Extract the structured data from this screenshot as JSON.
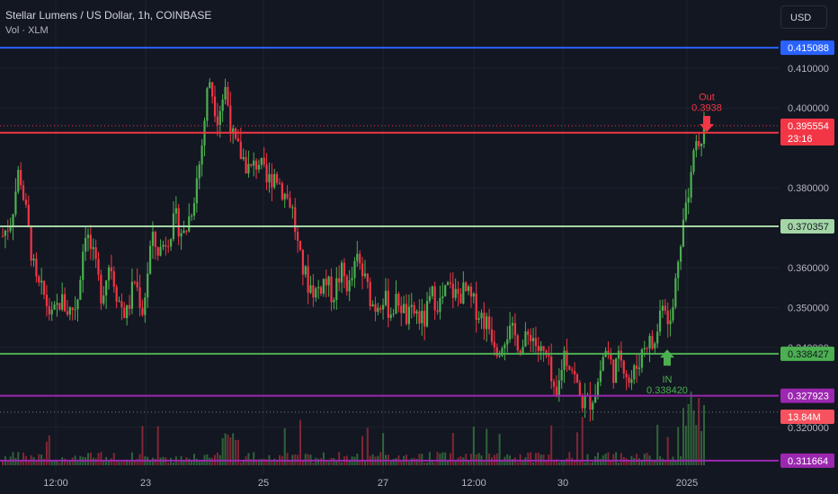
{
  "header": {
    "symbol_title": "Stellar Lumens / US Dollar, 1h, COINBASE",
    "volume_indicator": "Vol · XLM",
    "currency_button": "USD"
  },
  "colors": {
    "background": "#131722",
    "up": "#4caf50",
    "down": "#f23645",
    "hline_blue": "#2962ff",
    "hline_red": "#f23645",
    "hline_light_green": "#a5d6a7",
    "hline_green": "#4caf50",
    "hline_purple": "#9c27b0",
    "volume_badge": "#f7525f"
  },
  "chart_data": {
    "type": "candlestick",
    "title": "Stellar Lumens / US Dollar, 1h, COINBASE",
    "ylim": [
      0.3105,
      0.4167
    ],
    "y_ticks": [
      0.41,
      0.4,
      0.38,
      0.36,
      0.35,
      0.34,
      0.32
    ],
    "y_tick_labels": [
      "0.410000",
      "0.400000",
      "0.380000",
      "0.360000",
      "0.350000",
      "0.340000",
      "0.320000"
    ],
    "x_tick_labels": [
      "12:00",
      "23",
      "25",
      "27",
      "12:00",
      "30",
      "2025"
    ],
    "grid": true,
    "close_path": [
      0.368,
      0.372,
      0.385,
      0.371,
      0.356,
      0.353,
      0.347,
      0.352,
      0.349,
      0.351,
      0.37,
      0.362,
      0.353,
      0.362,
      0.352,
      0.348,
      0.357,
      0.349,
      0.367,
      0.364,
      0.368,
      0.372,
      0.368,
      0.376,
      0.388,
      0.408,
      0.398,
      0.405,
      0.391,
      0.388,
      0.384,
      0.387,
      0.381,
      0.384,
      0.379,
      0.376,
      0.362,
      0.356,
      0.354,
      0.357,
      0.353,
      0.359,
      0.355,
      0.362,
      0.356,
      0.35,
      0.353,
      0.349,
      0.352,
      0.347,
      0.349,
      0.346,
      0.353,
      0.351,
      0.355,
      0.353,
      0.354,
      0.351,
      0.348,
      0.345,
      0.34,
      0.344,
      0.343,
      0.34,
      0.344,
      0.339,
      0.337,
      0.325,
      0.339,
      0.335,
      0.327,
      0.326,
      0.33,
      0.34,
      0.334,
      0.338,
      0.331,
      0.336,
      0.342,
      0.34,
      0.353,
      0.345,
      0.366,
      0.378,
      0.393,
      0.394
    ],
    "horizontal_levels": [
      {
        "value": 0.415088,
        "label": "0.415088",
        "color": "#2962ff"
      },
      {
        "value": 0.393812,
        "label": "0.393812",
        "color": "#f23645"
      },
      {
        "value": 0.370357,
        "label": "0.370357",
        "color": "#a5d6a7"
      },
      {
        "value": 0.338427,
        "label": "0.338427",
        "color": "#4caf50"
      },
      {
        "value": 0.327923,
        "label": "0.327923",
        "color": "#9c27b0"
      },
      {
        "value": 0.311664,
        "label": "0.311664",
        "color": "#9c27b0"
      }
    ],
    "last_price": {
      "value": 0.395554,
      "label": "0.395554",
      "countdown": "23:16"
    },
    "volume_label": "13.84M",
    "signals": [
      {
        "type": "Out",
        "value_label": "0.3938",
        "direction": "down"
      },
      {
        "type": "IN",
        "value_label": "0.338420",
        "direction": "up"
      }
    ]
  }
}
